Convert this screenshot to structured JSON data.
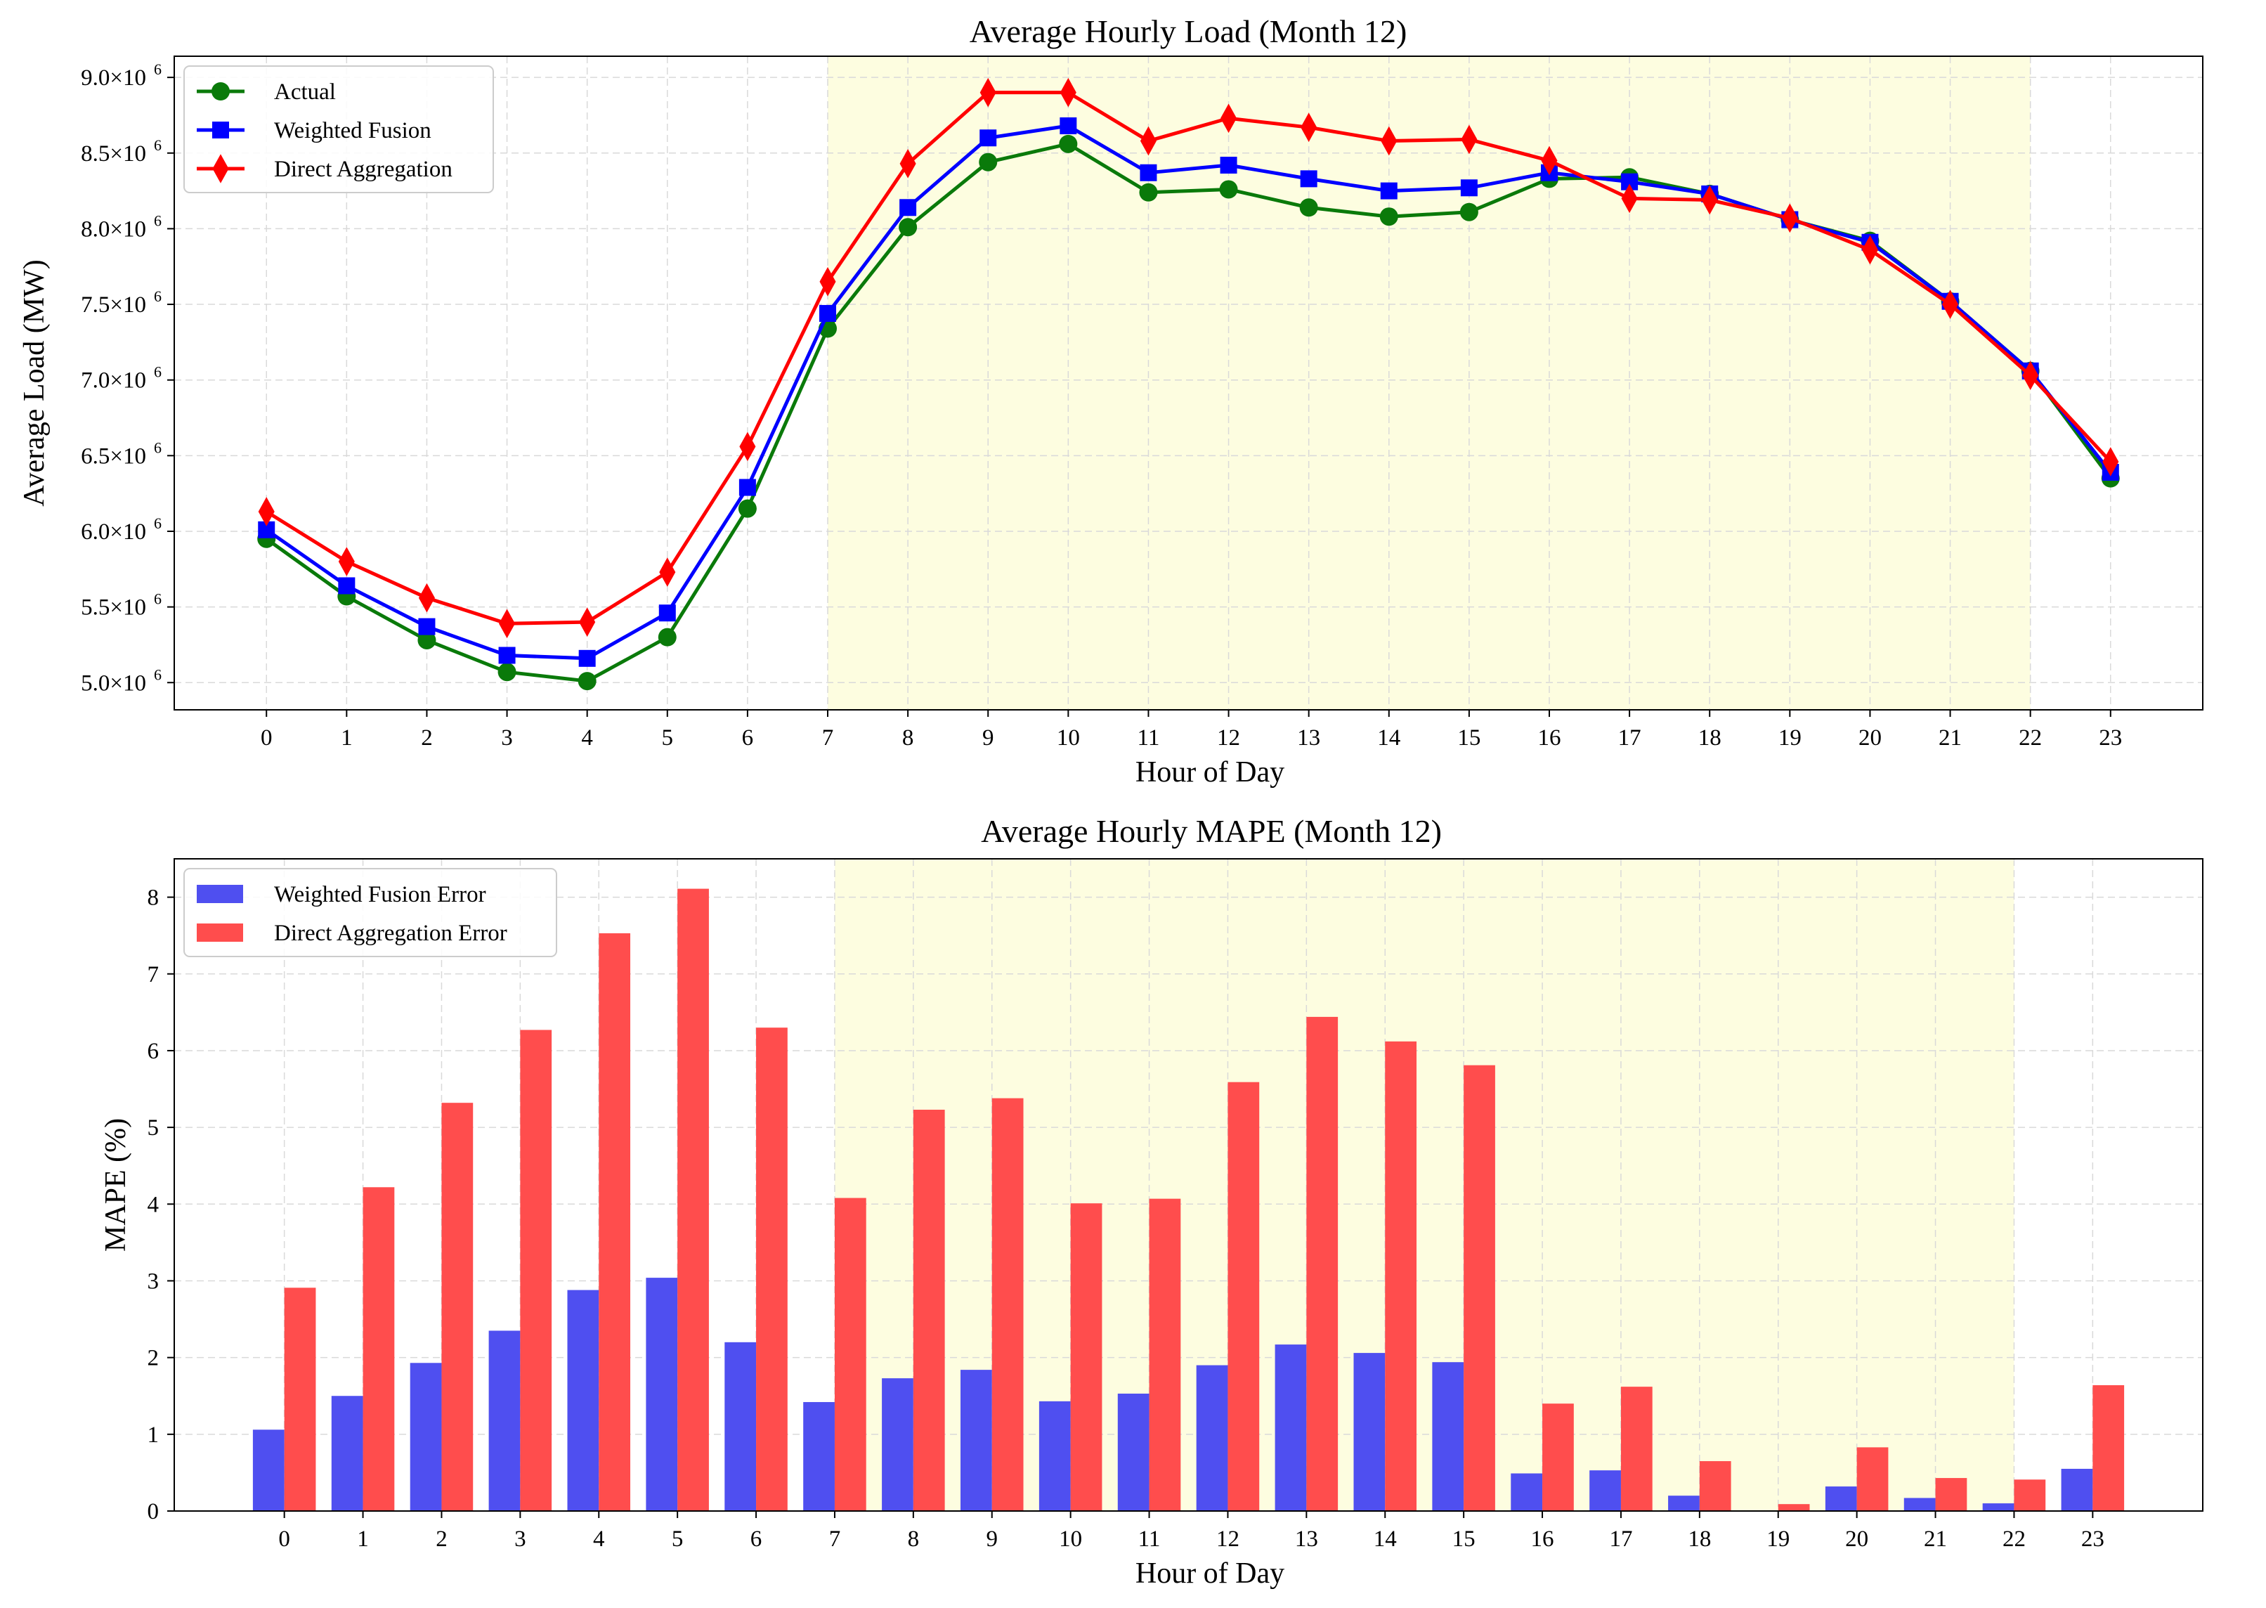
{
  "chart_data": [
    {
      "type": "line",
      "title": "Average Hourly Load (Month 12)",
      "xlabel": "Hour of Day",
      "ylabel": "Average Load (MW)",
      "x": [
        0,
        1,
        2,
        3,
        4,
        5,
        6,
        7,
        8,
        9,
        10,
        11,
        12,
        13,
        14,
        15,
        16,
        17,
        18,
        19,
        20,
        21,
        22,
        23
      ],
      "xlim": [
        -1.15,
        24.15
      ],
      "ylim": [
        4820000,
        9140000
      ],
      "yticks": [
        5000000,
        5500000,
        6000000,
        6500000,
        7000000,
        7500000,
        8000000,
        8500000,
        9000000
      ],
      "ytick_labels": [
        "5.0×10",
        "5.5×10",
        "6.0×10",
        "6.5×10",
        "7.0×10",
        "7.5×10",
        "8.0×10",
        "8.5×10",
        "9.0×10"
      ],
      "ytick_exponent": "6",
      "highlight_range": [
        7,
        22
      ],
      "highlight_color": "#fdfde0",
      "grid": true,
      "legend_position": "upper-left",
      "series": [
        {
          "name": "Actual",
          "color": "#0a7a0a",
          "marker": "circle",
          "values": [
            5950000,
            5570000,
            5280000,
            5070000,
            5010000,
            5300000,
            6150000,
            7340000,
            8010000,
            8440000,
            8560000,
            8240000,
            8260000,
            8140000,
            8080000,
            8110000,
            8330000,
            8340000,
            8230000,
            8060000,
            7920000,
            7520000,
            7060000,
            6350000
          ]
        },
        {
          "name": "Weighted Fusion",
          "color": "#0000ff",
          "marker": "square",
          "values": [
            6010000,
            5640000,
            5370000,
            5180000,
            5160000,
            5460000,
            6290000,
            7440000,
            8140000,
            8600000,
            8680000,
            8370000,
            8420000,
            8330000,
            8250000,
            8270000,
            8370000,
            8310000,
            8230000,
            8060000,
            7910000,
            7520000,
            7060000,
            6390000
          ]
        },
        {
          "name": "Direct Aggregation",
          "color": "#ff0000",
          "marker": "diamond",
          "values": [
            6130000,
            5800000,
            5560000,
            5390000,
            5400000,
            5730000,
            6560000,
            7650000,
            8430000,
            8900000,
            8900000,
            8580000,
            8730000,
            8670000,
            8580000,
            8590000,
            8450000,
            8200000,
            8190000,
            8070000,
            7860000,
            7500000,
            7030000,
            6460000
          ]
        }
      ]
    },
    {
      "type": "bar",
      "title": "Average Hourly MAPE (Month 12)",
      "xlabel": "Hour of Day",
      "ylabel": "MAPE (%)",
      "categories": [
        "0",
        "1",
        "2",
        "3",
        "4",
        "5",
        "6",
        "7",
        "8",
        "9",
        "10",
        "11",
        "12",
        "13",
        "14",
        "15",
        "16",
        "17",
        "18",
        "19",
        "20",
        "21",
        "22",
        "23"
      ],
      "xlim": [
        -1.4,
        24.4
      ],
      "ylim": [
        0,
        8.5
      ],
      "yticks": [
        0,
        1,
        2,
        3,
        4,
        5,
        6,
        7,
        8
      ],
      "ytick_labels": [
        "0",
        "1",
        "2",
        "3",
        "4",
        "5",
        "6",
        "7",
        "8"
      ],
      "highlight_range": [
        7,
        22
      ],
      "highlight_color": "#fdfde0",
      "grid": true,
      "legend_position": "upper-left",
      "series": [
        {
          "name": "Weighted Fusion Error",
          "color": "#4f4ff0",
          "values": [
            1.06,
            1.5,
            1.93,
            2.35,
            2.88,
            3.04,
            2.2,
            1.42,
            1.73,
            1.84,
            1.43,
            1.53,
            1.9,
            2.17,
            2.06,
            1.94,
            0.49,
            0.53,
            0.2,
            0.0,
            0.32,
            0.17,
            0.1,
            0.55
          ]
        },
        {
          "name": "Direct Aggregation Error",
          "color": "#ff4d4d",
          "values": [
            2.91,
            4.22,
            5.32,
            6.27,
            7.53,
            8.11,
            6.3,
            4.08,
            5.23,
            5.38,
            4.01,
            4.07,
            5.59,
            6.44,
            6.12,
            5.81,
            1.4,
            1.62,
            0.65,
            0.09,
            0.83,
            0.43,
            0.41,
            1.64
          ]
        }
      ]
    }
  ]
}
